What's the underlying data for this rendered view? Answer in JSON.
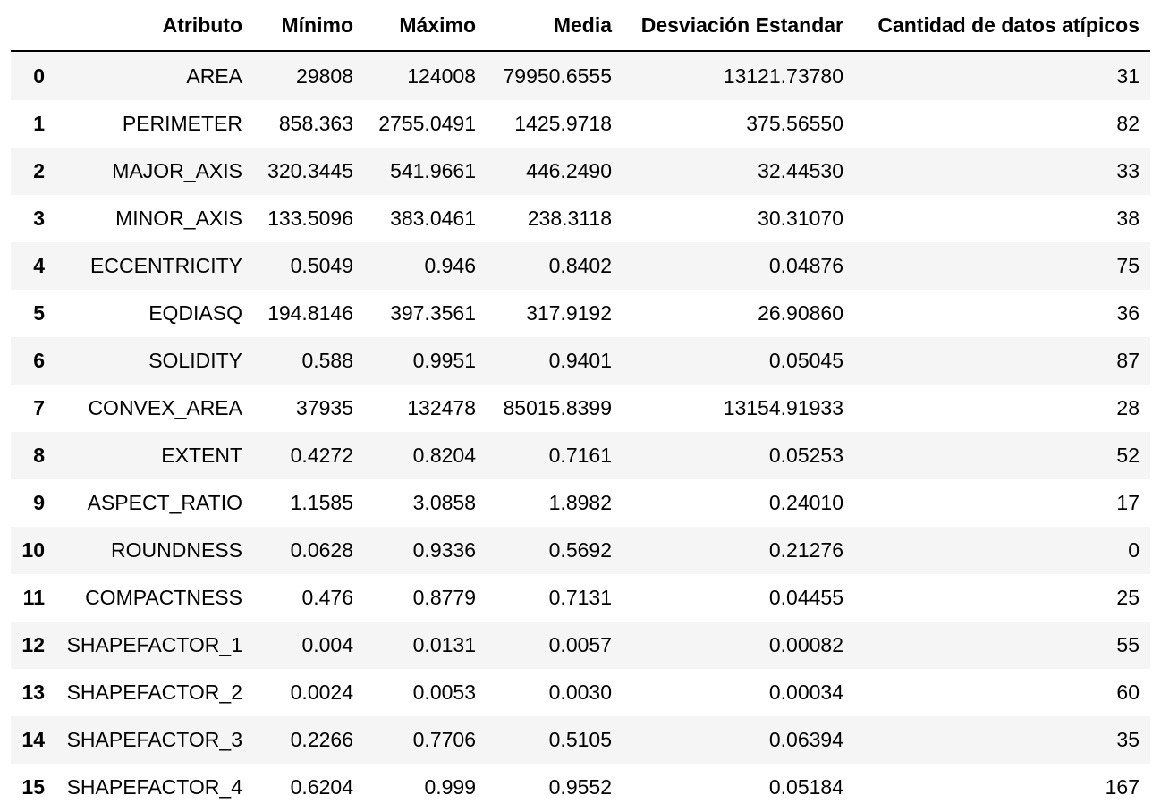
{
  "table": {
    "columns": [
      "",
      "Atributo",
      "Mínimo",
      "Máximo",
      "Media",
      "Desviación Estandar",
      "Cantidad de datos atípicos"
    ],
    "rows": [
      [
        "0",
        "AREA",
        "29808",
        "124008",
        "79950.6555",
        "13121.73780",
        "31"
      ],
      [
        "1",
        "PERIMETER",
        "858.363",
        "2755.0491",
        "1425.9718",
        "375.56550",
        "82"
      ],
      [
        "2",
        "MAJOR_AXIS",
        "320.3445",
        "541.9661",
        "446.2490",
        "32.44530",
        "33"
      ],
      [
        "3",
        "MINOR_AXIS",
        "133.5096",
        "383.0461",
        "238.3118",
        "30.31070",
        "38"
      ],
      [
        "4",
        "ECCENTRICITY",
        "0.5049",
        "0.946",
        "0.8402",
        "0.04876",
        "75"
      ],
      [
        "5",
        "EQDIASQ",
        "194.8146",
        "397.3561",
        "317.9192",
        "26.90860",
        "36"
      ],
      [
        "6",
        "SOLIDITY",
        "0.588",
        "0.9951",
        "0.9401",
        "0.05045",
        "87"
      ],
      [
        "7",
        "CONVEX_AREA",
        "37935",
        "132478",
        "85015.8399",
        "13154.91933",
        "28"
      ],
      [
        "8",
        "EXTENT",
        "0.4272",
        "0.8204",
        "0.7161",
        "0.05253",
        "52"
      ],
      [
        "9",
        "ASPECT_RATIO",
        "1.1585",
        "3.0858",
        "1.8982",
        "0.24010",
        "17"
      ],
      [
        "10",
        "ROUNDNESS",
        "0.0628",
        "0.9336",
        "0.5692",
        "0.21276",
        "0"
      ],
      [
        "11",
        "COMPACTNESS",
        "0.476",
        "0.8779",
        "0.7131",
        "0.04455",
        "25"
      ],
      [
        "12",
        "SHAPEFACTOR_1",
        "0.004",
        "0.0131",
        "0.0057",
        "0.00082",
        "55"
      ],
      [
        "13",
        "SHAPEFACTOR_2",
        "0.0024",
        "0.0053",
        "0.0030",
        "0.00034",
        "60"
      ],
      [
        "14",
        "SHAPEFACTOR_3",
        "0.2266",
        "0.7706",
        "0.5105",
        "0.06394",
        "35"
      ],
      [
        "15",
        "SHAPEFACTOR_4",
        "0.6204",
        "0.999",
        "0.9552",
        "0.05184",
        "167"
      ]
    ]
  }
}
